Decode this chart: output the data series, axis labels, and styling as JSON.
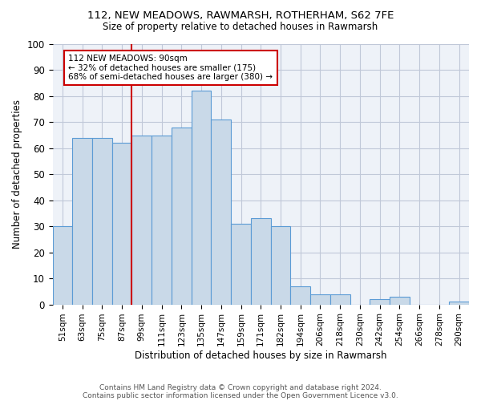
{
  "title1": "112, NEW MEADOWS, RAWMARSH, ROTHERHAM, S62 7FE",
  "title2": "Size of property relative to detached houses in Rawmarsh",
  "xlabel": "Distribution of detached houses by size in Rawmarsh",
  "ylabel": "Number of detached properties",
  "bar_labels": [
    "51sqm",
    "63sqm",
    "75sqm",
    "87sqm",
    "99sqm",
    "111sqm",
    "123sqm",
    "135sqm",
    "147sqm",
    "159sqm",
    "171sqm",
    "182sqm",
    "194sqm",
    "206sqm",
    "218sqm",
    "230sqm",
    "242sqm",
    "254sqm",
    "266sqm",
    "278sqm",
    "290sqm"
  ],
  "bar_values": [
    30,
    64,
    64,
    62,
    65,
    65,
    68,
    82,
    71,
    31,
    33,
    30,
    7,
    4,
    4,
    0,
    2,
    3,
    0,
    0,
    1
  ],
  "bar_color": "#c9d9e8",
  "bar_edge_color": "#5b9bd5",
  "vline_color": "#cc0000",
  "annotation_text": "112 NEW MEADOWS: 90sqm\n← 32% of detached houses are smaller (175)\n68% of semi-detached houses are larger (380) →",
  "annotation_box_color": "#ffffff",
  "annotation_box_edge": "#cc0000",
  "grid_color": "#c0c8d8",
  "background_color": "#eef2f8",
  "ylim": [
    0,
    100
  ],
  "footer1": "Contains HM Land Registry data © Crown copyright and database right 2024.",
  "footer2": "Contains public sector information licensed under the Open Government Licence v3.0."
}
